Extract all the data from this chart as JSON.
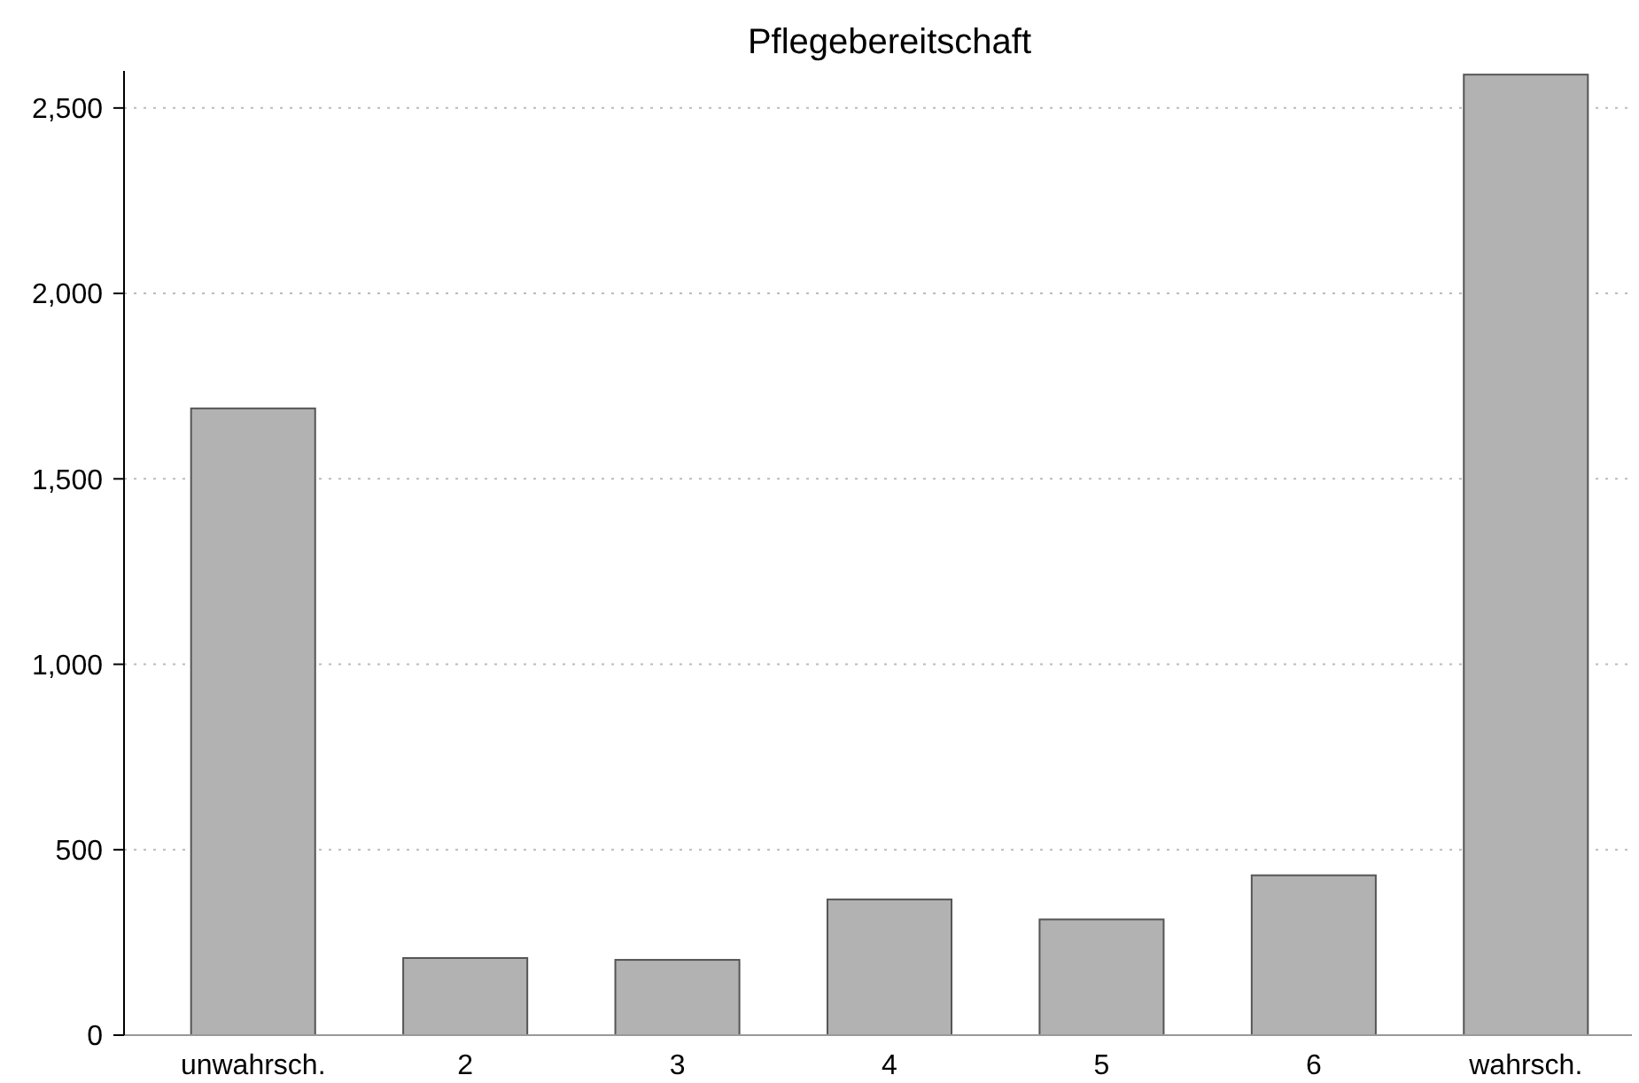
{
  "chart_data": {
    "type": "bar",
    "title": "Pflegebereitschaft",
    "categories": [
      "unwahrsch.",
      "2",
      "3",
      "4",
      "5",
      "6",
      "wahrsch."
    ],
    "values": [
      1690,
      208,
      203,
      366,
      312,
      431,
      2590
    ],
    "color": "#b2b2b2",
    "ylim": [
      0,
      2600
    ],
    "yticks": [
      0,
      {
        "value": 500,
        "label": "500"
      },
      {
        "value": 1000,
        "label": "1,000"
      },
      {
        "value": 1500,
        "label": "1,500"
      },
      {
        "value": 2000,
        "label": "2,000"
      },
      {
        "value": 2500,
        "label": "2,500"
      }
    ],
    "grid": "y"
  }
}
